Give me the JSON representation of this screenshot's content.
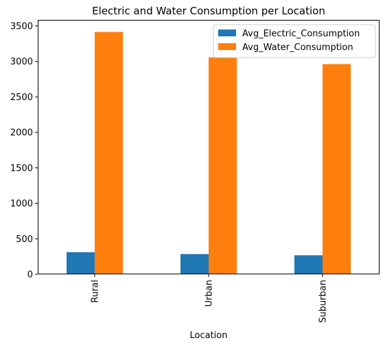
{
  "chart_data": {
    "type": "bar",
    "title": "Electric and Water Consumption per Location",
    "xlabel": "Location",
    "ylabel": "",
    "categories": [
      "Rural",
      "Urban",
      "Suburban"
    ],
    "series": [
      {
        "name": "Avg_Electric_Consumption",
        "color": "#1f77b4",
        "values": [
          312,
          285,
          268
        ]
      },
      {
        "name": "Avg_Water_Consumption",
        "color": "#ff7f0e",
        "values": [
          3415,
          3058,
          2962
        ]
      }
    ],
    "ylim": [
      0,
      3585
    ],
    "yticks": [
      0,
      500,
      1000,
      1500,
      2000,
      2500,
      3000,
      3500
    ],
    "grid": false,
    "legend_position": "top-right"
  }
}
